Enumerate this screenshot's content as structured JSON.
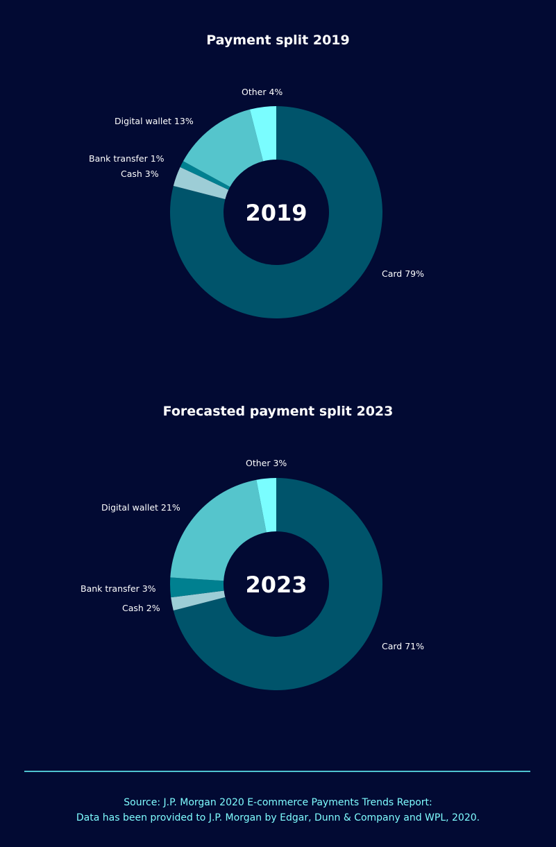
{
  "chart_data": [
    {
      "type": "pie",
      "title": "Payment split 2019",
      "center_label": "2019",
      "categories": [
        "Card",
        "Cash",
        "Bank transfer",
        "Digital wallet",
        "Other"
      ],
      "values": [
        79,
        3,
        1,
        13,
        4
      ],
      "labels": [
        "Card 79%",
        "Cash 3%",
        "Bank transfer 1%",
        "Digital wallet 13%",
        "Other 4%"
      ],
      "colors": [
        "#00546b",
        "#9dcdd6",
        "#008090",
        "#55c5cc",
        "#7afdff"
      ]
    },
    {
      "type": "pie",
      "title": "Forecasted payment split 2023",
      "center_label": "2023",
      "categories": [
        "Card",
        "Cash",
        "Bank transfer",
        "Digital wallet",
        "Other"
      ],
      "values": [
        71,
        2,
        3,
        21,
        3
      ],
      "labels": [
        "Card 71%",
        "Cash 2%",
        "Bank transfer 3%",
        "Digital wallet 21%",
        "Other 3%"
      ],
      "colors": [
        "#00546b",
        "#9dcdd6",
        "#008090",
        "#55c5cc",
        "#7afdff"
      ]
    }
  ],
  "footer": {
    "line1": "Source: J.P. Morgan 2020 E-commerce Payments Trends Report:",
    "line2": "Data has been provided to J.P. Morgan by Edgar, Dunn & Company and WPL, 2020."
  },
  "colors": {
    "background": "#020a33",
    "rule": "#4fc3d0",
    "source_text": "#7ffcff"
  }
}
